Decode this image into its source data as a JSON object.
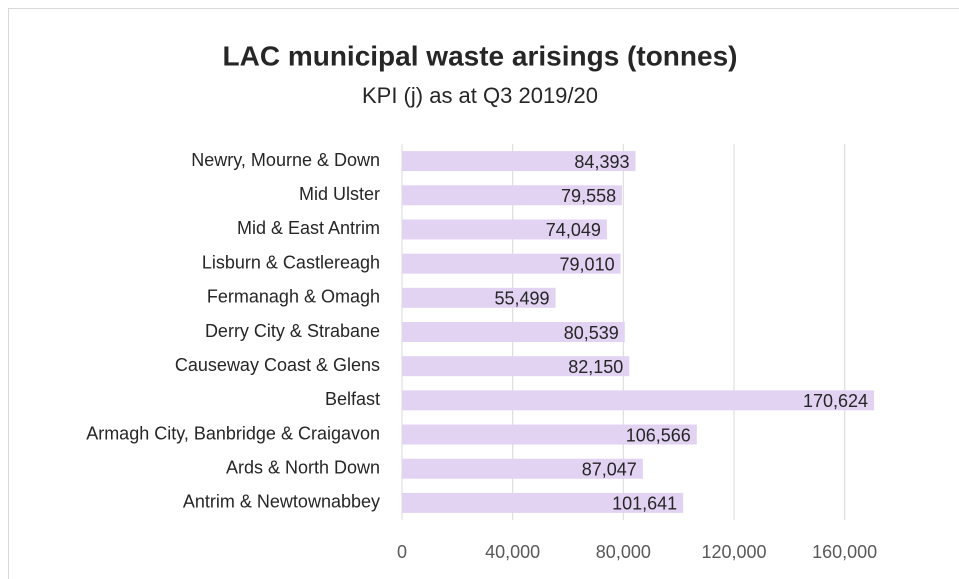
{
  "chart_data": {
    "type": "bar",
    "orientation": "horizontal",
    "title": "LAC municipal waste arisings (tonnes)",
    "subtitle": "KPI (j) as at Q3 2019/20",
    "categories": [
      "Newry, Mourne & Down",
      "Mid Ulster",
      "Mid & East Antrim",
      "Lisburn & Castlereagh",
      "Fermanagh & Omagh",
      "Derry City & Strabane",
      "Causeway Coast & Glens",
      "Belfast",
      "Armagh City, Banbridge & Craigavon",
      "Ards & North Down",
      "Antrim & Newtownabbey"
    ],
    "values": [
      84393,
      79558,
      74049,
      79010,
      55499,
      80539,
      82150,
      170624,
      106566,
      87047,
      101641
    ],
    "value_labels": [
      "84,393",
      "79,558",
      "74,049",
      "79,010",
      "55,499",
      "80,539",
      "82,150",
      "170,624",
      "106,566",
      "87,047",
      "101,641"
    ],
    "color": "#e2d3f3",
    "xlim": [
      0,
      180000
    ],
    "xticks": [
      0,
      {
        "value": 40000,
        "label": "40,000"
      },
      {
        "value": 80000,
        "label": "80,000"
      },
      {
        "value": 120000,
        "label": "120,000"
      },
      {
        "value": 160000,
        "label": "160,000"
      }
    ],
    "grid": true
  }
}
